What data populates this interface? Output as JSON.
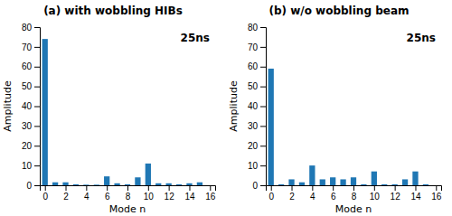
{
  "chart_data": [
    {
      "type": "bar",
      "title": "(a) with wobbling HIBs",
      "annotation": "25ns",
      "xlabel": "Mode n",
      "ylabel": "Amplitude",
      "x": [
        0,
        1,
        2,
        3,
        4,
        5,
        6,
        7,
        8,
        9,
        10,
        11,
        12,
        13,
        14,
        15
      ],
      "values": [
        74,
        1.5,
        1.5,
        0.5,
        0.3,
        0.3,
        4.5,
        1.0,
        0.5,
        4.0,
        11.0,
        1.0,
        1.0,
        0.5,
        1.0,
        1.5
      ],
      "xlim": [
        -0.5,
        16.5
      ],
      "xticks": [
        0,
        2,
        4,
        6,
        8,
        10,
        12,
        14,
        16
      ],
      "ylim": [
        0,
        80
      ],
      "yticks": [
        0,
        10,
        20,
        30,
        40,
        50,
        60,
        70,
        80
      ],
      "grid": false
    },
    {
      "type": "bar",
      "title": "(b) w/o wobbling beam",
      "annotation": "25ns",
      "xlabel": "Mode n",
      "ylabel": "Amplitude",
      "x": [
        0,
        1,
        2,
        3,
        4,
        5,
        6,
        7,
        8,
        9,
        10,
        11,
        12,
        13,
        14,
        15
      ],
      "values": [
        59,
        0.5,
        3.0,
        1.5,
        10.0,
        3.0,
        4.0,
        3.0,
        4.0,
        0.5,
        7.0,
        0.5,
        0.5,
        3.0,
        7.0,
        0.5
      ],
      "xlim": [
        -0.5,
        16.5
      ],
      "xticks": [
        0,
        2,
        4,
        6,
        8,
        10,
        12,
        14,
        16
      ],
      "ylim": [
        0,
        80
      ],
      "yticks": [
        0,
        10,
        20,
        30,
        40,
        50,
        60,
        70,
        80
      ],
      "grid": false
    }
  ]
}
